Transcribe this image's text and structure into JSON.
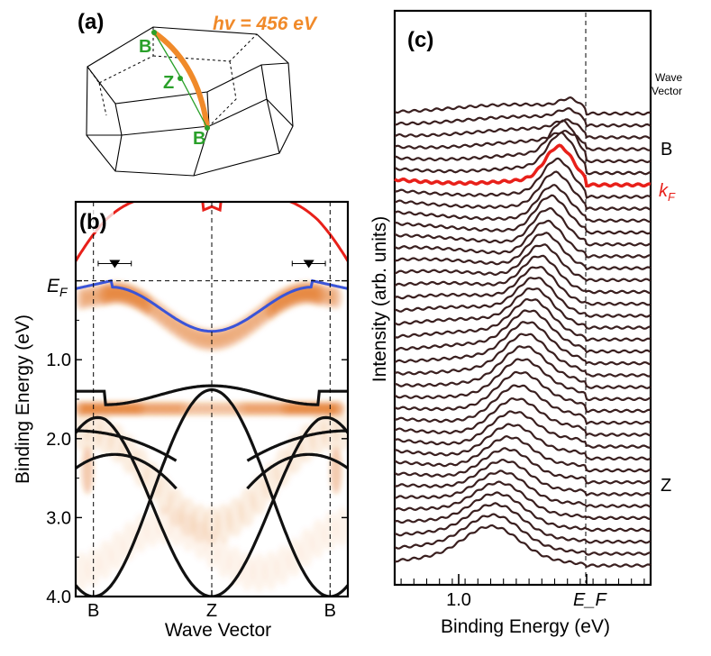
{
  "chart_data": [
    {
      "panel": "(a)",
      "type": "diagram",
      "title": "Brillouin zone",
      "photon_energy_label": "hv = 456 eV",
      "points": [
        "B",
        "Z",
        "B"
      ],
      "colors": {
        "cut": "#f08a2a",
        "points": "#2aa02a",
        "zone": "#000000"
      }
    },
    {
      "panel": "(b)",
      "type": "heatmap",
      "xlabel": "Wave Vector",
      "ylabel": "Binding Energy (eV)",
      "x_ticks": [
        "B",
        "Z",
        "B"
      ],
      "y_ticks": [
        "E_F",
        "1.0",
        "2.0",
        "3.0",
        "4.0"
      ],
      "y_tick_values": [
        0.0,
        1.0,
        2.0,
        3.0,
        4.0
      ],
      "ylim": [
        4.0,
        -1.0
      ],
      "xlim": [
        -1.15,
        1.15
      ],
      "fermi_label": "E",
      "fermi_sub": "F",
      "kF_markers": [
        -0.82,
        0.82
      ],
      "kF_error": 0.14,
      "colors": {
        "map": "#e06a10",
        "red_band": "#e8201a",
        "blue_band": "#3a54d8",
        "black_bands": "#111111"
      }
    },
    {
      "panel": "(c)",
      "type": "line",
      "xlabel": "Binding Energy (eV)",
      "ylabel": "Intensity (arb. units)",
      "x_ticks": [
        "1.0",
        "E_F"
      ],
      "x_tick_values": [
        1.0,
        0.0
      ],
      "xlim": [
        1.5,
        -0.5
      ],
      "n_spectra": 39,
      "kF_index": 6,
      "right_labels": {
        "header": "Wave Vector",
        "top": "B",
        "kF": "k",
        "kF_sub": "F",
        "bottom": "Z"
      },
      "colors": {
        "spectra": "#3a1f1f",
        "kF": "#e8201a"
      }
    }
  ]
}
